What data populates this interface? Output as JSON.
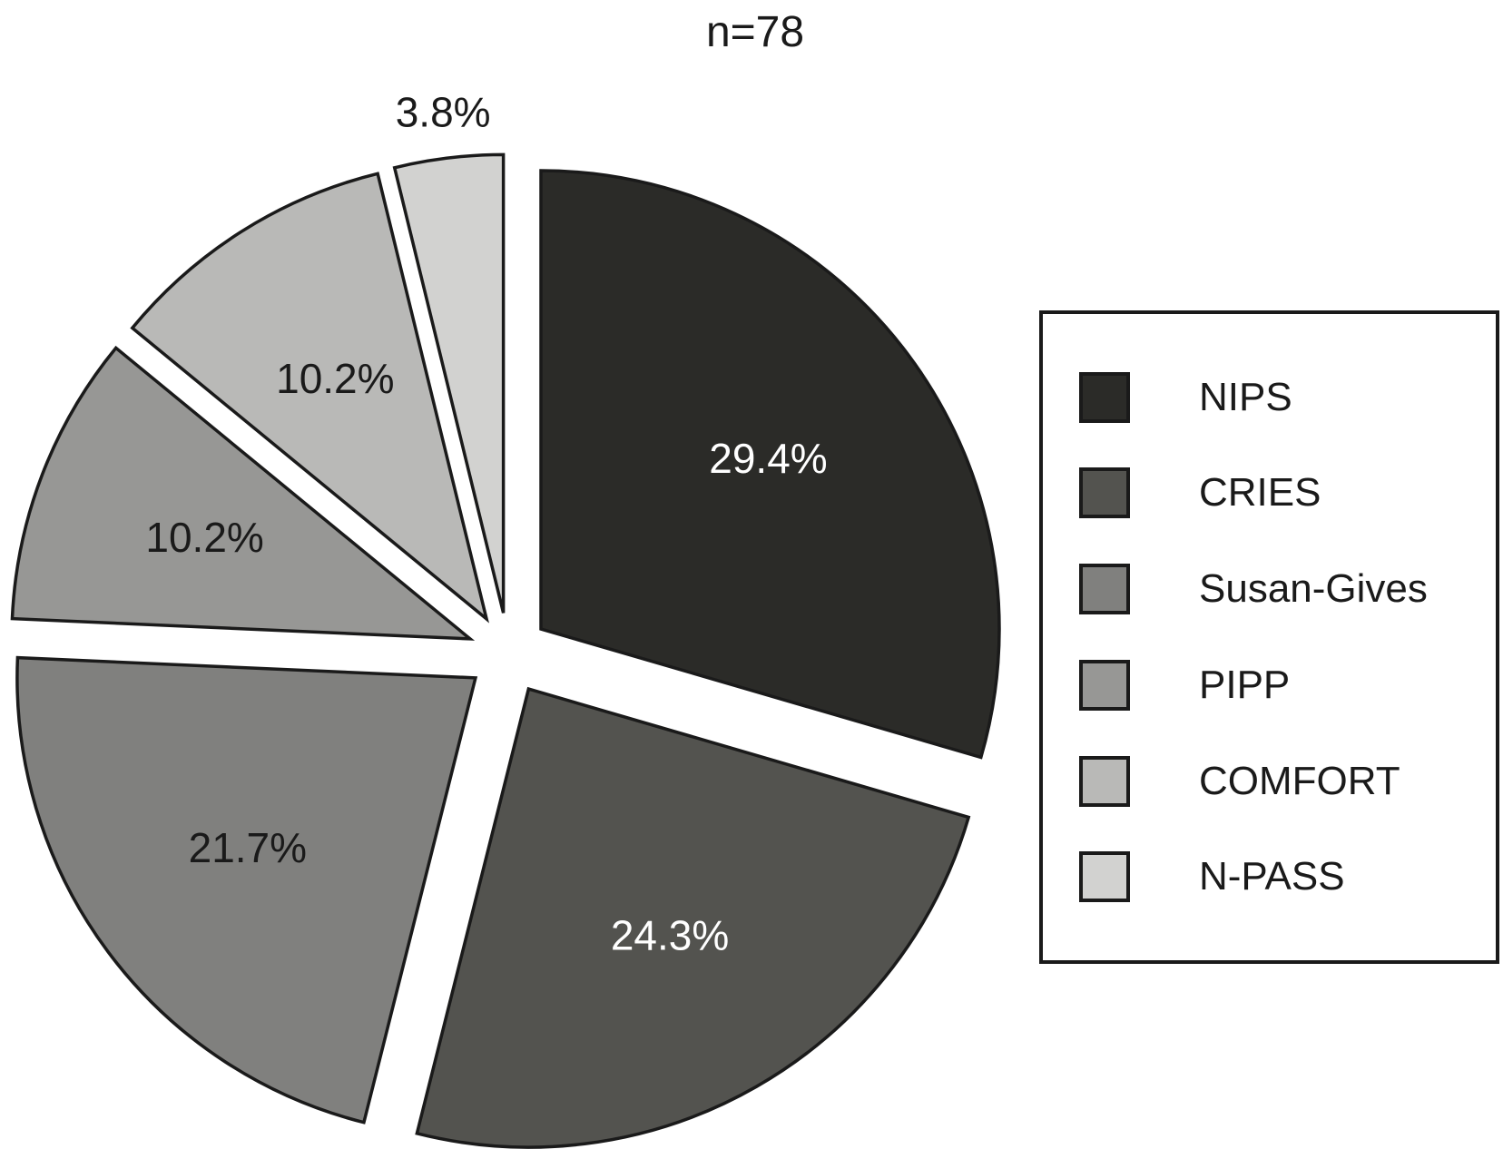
{
  "chart_data": {
    "type": "pie",
    "title": "n=78",
    "categories": [
      "NIPS",
      "CRIES",
      "Susan-Gives",
      "PIPP",
      "COMFORT",
      "N-PASS"
    ],
    "values": [
      29.4,
      24.3,
      21.7,
      10.2,
      10.2,
      3.8
    ],
    "slice_labels": [
      "29.4%",
      "24.3%",
      "21.7%",
      "10.2%",
      "10.2%",
      "3.8%"
    ],
    "colors": [
      "#2b2b28",
      "#53534f",
      "#80807e",
      "#979795",
      "#b9b9b7",
      "#d2d2d0"
    ],
    "label_colors": [
      "#ffffff",
      "#ffffff",
      "#1a1a1a",
      "#1a1a1a",
      "#1a1a1a",
      "#1a1a1a"
    ],
    "label_outside": [
      false,
      false,
      false,
      false,
      false,
      true
    ],
    "stroke_color": "#1a1a1a",
    "background_color": "#ffffff",
    "start_angle_deg": 0,
    "direction": "clockwise",
    "exploded": true,
    "legend_position": "right"
  }
}
